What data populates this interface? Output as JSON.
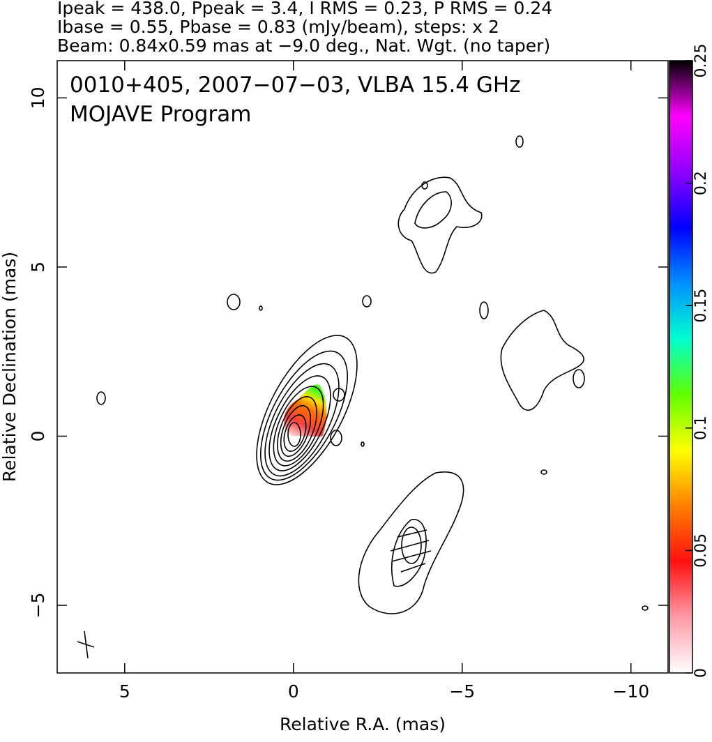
{
  "chart_data": {
    "type": "contour",
    "header_lines": [
      "Ipeak = 438.0, Ppeak = 3.4, I RMS = 0.23, P RMS = 0.24",
      "Ibase = 0.55, Pbase = 0.83 (mJy/beam), steps: x 2",
      "Beam: 0.84x0.59 mas at −9.0 deg., Nat. Wgt. (no taper)"
    ],
    "title": "0010+405, 2007−07−03, VLBA 15.4 GHz",
    "subtitle": "MOJAVE Program",
    "x_label": "Relative R.A. (mas)",
    "y_label": "Relative Declination (mas)",
    "xlim": [
      7,
      -11.1
    ],
    "ylim": [
      -7,
      11.1
    ],
    "xticks": [
      5,
      0,
      {
        "value": -5,
        "label": "−5"
      },
      {
        "value": -10,
        "label": "−10"
      }
    ],
    "yticks": [
      {
        "value": -5,
        "label": "−5"
      },
      0,
      5,
      10
    ],
    "colorbar": {
      "lim": [
        0,
        0.25
      ],
      "ticks": [
        0,
        0.05,
        0.1,
        0.15,
        0.2,
        0.25
      ],
      "colors": [
        "#ffffff",
        "#ff9aa8",
        "#ff1010",
        "#ff8000",
        "#ffff00",
        "#60ff00",
        "#00ffd0",
        "#0090ff",
        "#0000ff",
        "#9000ff",
        "#ff00ff",
        "#000000"
      ]
    }
  }
}
